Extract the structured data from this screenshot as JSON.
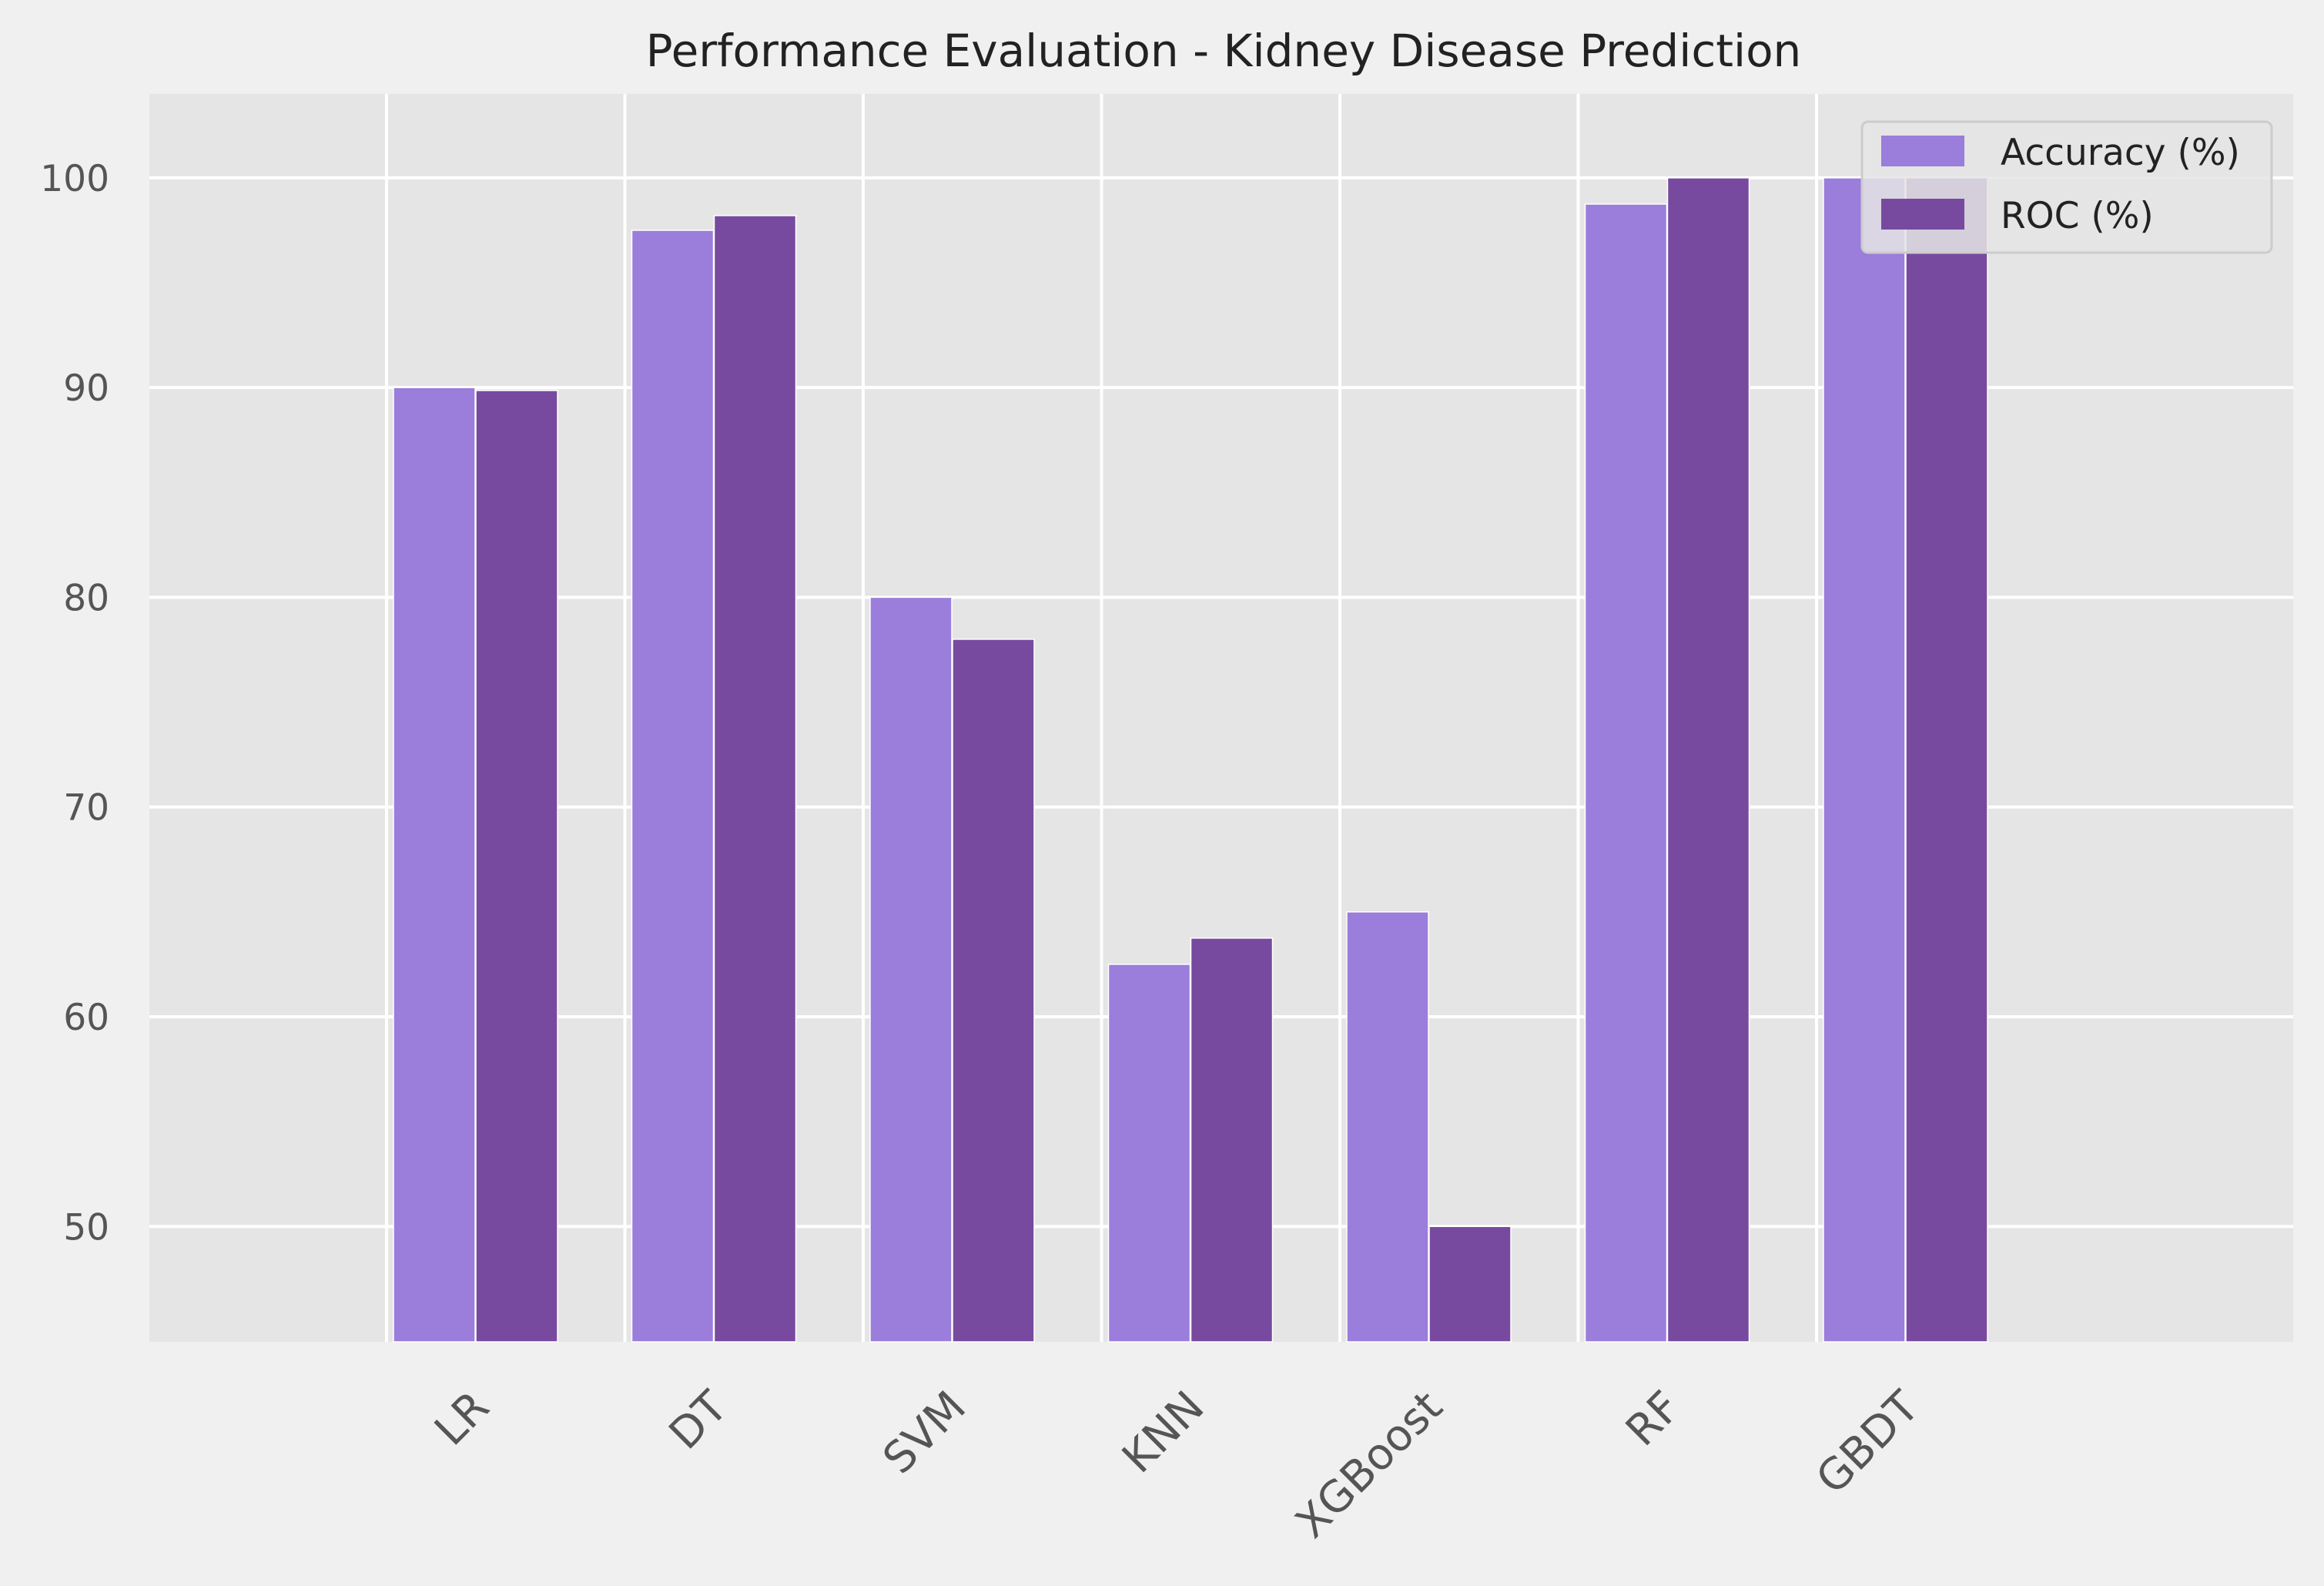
{
  "chart_data": {
    "type": "bar",
    "title": "Performance Evaluation - Kidney Disease Prediction",
    "xlabel": "",
    "ylabel": "",
    "categories": [
      "LR",
      "DT",
      "SVM",
      "KNN",
      "XGBoost",
      "RF",
      "GBDT"
    ],
    "series": [
      {
        "name": "Accuracy (%)",
        "values": [
          90.0,
          97.5,
          80.0,
          62.5,
          65.0,
          98.75,
          100.0
        ],
        "color": "#9b7ddb"
      },
      {
        "name": "ROC (%)",
        "values": [
          89.86,
          98.2,
          78.0,
          63.75,
          50.0,
          100.0,
          100.0
        ],
        "color": "#774a9f"
      }
    ],
    "ylim": [
      44.5,
      104
    ],
    "yticks": [
      50,
      60,
      70,
      80,
      90,
      100
    ],
    "grid": true,
    "legend_position": "top-right",
    "colors": {
      "plot_background": "#e5e5e5",
      "figure_background": "#f0f0f0",
      "grid": "#ffffff",
      "tick_text": "#555555",
      "title_text": "#222222"
    }
  }
}
